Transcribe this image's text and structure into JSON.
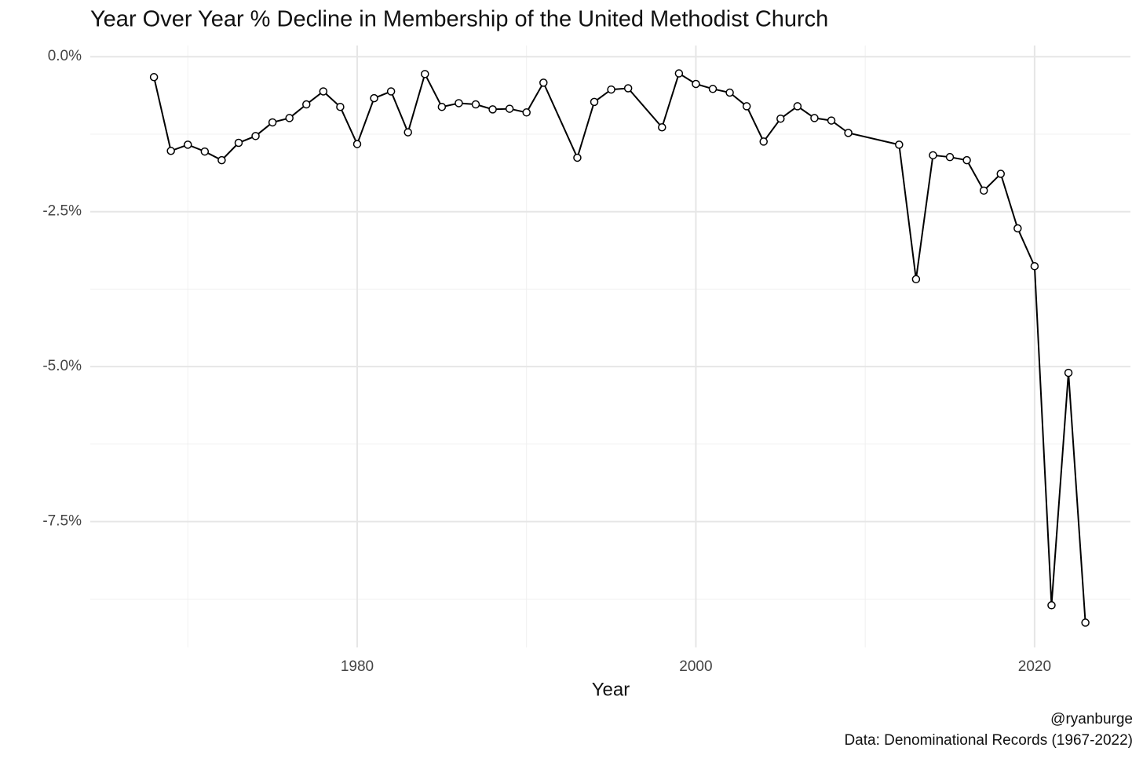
{
  "chart_data": {
    "type": "line",
    "title": "Year Over Year % Decline in Membership of the United Methodist Church",
    "x_label": "Year",
    "caption": [
      "@ryanburge",
      "Data: Denominational Records (1967-2022)"
    ],
    "x": [
      1968,
      1969,
      1970,
      1971,
      1972,
      1973,
      1974,
      1975,
      1976,
      1977,
      1978,
      1979,
      1980,
      1981,
      1982,
      1983,
      1984,
      1985,
      1986,
      1987,
      1988,
      1989,
      1990,
      1991,
      1993,
      1994,
      1995,
      1996,
      1998,
      1999,
      2000,
      2001,
      2002,
      2003,
      2004,
      2005,
      2006,
      2007,
      2008,
      2009,
      2012,
      2013,
      2014,
      2015,
      2016,
      2017,
      2018,
      2019,
      2020,
      2021,
      2022,
      2023
    ],
    "series": [
      {
        "color": "#000000",
        "marker_fill": "#ffffff",
        "values": [
          -0.33,
          -1.52,
          -1.42,
          -1.53,
          -1.67,
          -1.39,
          -1.28,
          -1.06,
          -0.99,
          -0.77,
          -0.56,
          -0.81,
          -1.41,
          -0.67,
          -0.56,
          -1.22,
          -0.28,
          -0.81,
          -0.75,
          -0.77,
          -0.85,
          -0.84,
          -0.9,
          -0.42,
          -1.63,
          -0.73,
          -0.53,
          -0.51,
          -1.14,
          -0.27,
          -0.44,
          -0.52,
          -0.58,
          -0.8,
          -1.37,
          -1.0,
          -0.8,
          -0.99,
          -1.03,
          -1.23,
          -1.42,
          -3.59,
          -1.59,
          -1.62,
          -1.67,
          -2.16,
          -1.89,
          -2.77,
          -3.38,
          -8.85,
          -5.1,
          -9.13
        ]
      }
    ],
    "xlim": [
      1964.24,
      2025.66
    ],
    "ylim": [
      -9.53,
      0.18
    ],
    "xticks": [
      1980,
      2000,
      2020
    ],
    "x_minor_ticks": [
      1970,
      1990,
      2010
    ],
    "yticks": [
      {
        "value": 0,
        "label": "0.0%"
      },
      {
        "value": -2.5,
        "label": "-2.5%"
      },
      {
        "value": -5,
        "label": "-5.0%"
      },
      {
        "value": -7.5,
        "label": "-7.5%"
      }
    ],
    "y_minor_ticks": [
      -1.25,
      -3.75,
      -6.25,
      -8.75
    ],
    "grid": true
  }
}
